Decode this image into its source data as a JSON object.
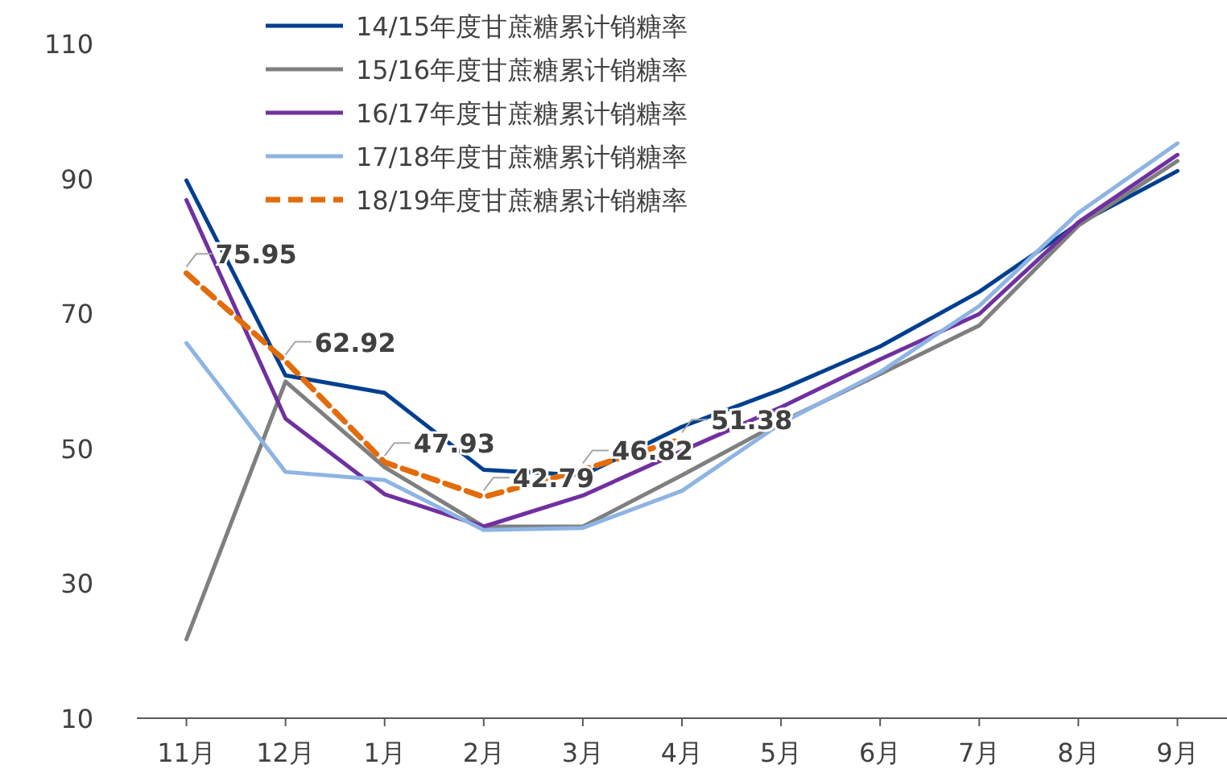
{
  "chart_data": {
    "type": "line",
    "categories": [
      "11月",
      "12月",
      "1月",
      "2月",
      "3月",
      "4月",
      "5月",
      "6月",
      "7月",
      "8月",
      "9月"
    ],
    "ylim": [
      10,
      110
    ],
    "yticks": [
      10,
      30,
      50,
      70,
      90,
      110
    ],
    "grid": false,
    "legend": "top",
    "marker": "none",
    "series": [
      {
        "name": "14/15年度甘蔗糖累计销糖率",
        "color": "#003f8f",
        "line_style": "solid",
        "values": [
          89.7,
          60.8,
          58.2,
          46.8,
          46,
          53.2,
          58.7,
          65.1,
          73.2,
          83.3,
          91.1
        ]
      },
      {
        "name": "15/16年度甘蔗糖累计销糖率",
        "color": "#7f7f7f",
        "line_style": "solid",
        "values": [
          21.7,
          59.9,
          47.2,
          38.4,
          38.4,
          46,
          53.9,
          61,
          68.2,
          83,
          92.6
        ]
      },
      {
        "name": "16/17年度甘蔗糖累计销糖率",
        "color": "#7030a0",
        "line_style": "solid",
        "values": [
          86.8,
          54.4,
          43.2,
          38.4,
          43,
          49.6,
          56.1,
          63.2,
          69.9,
          83.5,
          93.5
        ]
      },
      {
        "name": "17/18年度甘蔗糖累计销糖率",
        "color": "#8eb4e3",
        "line_style": "solid",
        "values": [
          65.6,
          46.5,
          45.3,
          37.9,
          38.2,
          43.7,
          53.7,
          61.3,
          71.1,
          84.9,
          95.2
        ]
      },
      {
        "name": "18/19年度甘蔗糖累计销糖率",
        "color": "#e36c0a",
        "line_style": "dashed",
        "values": [
          75.95,
          62.92,
          47.93,
          42.79,
          46.82,
          51.38,
          null,
          null,
          null,
          null,
          null
        ],
        "value_labels": [
          "75.95",
          "62.92",
          "47.93",
          "42.79",
          "46.82",
          "51.38",
          null,
          null,
          null,
          null,
          null
        ]
      }
    ]
  }
}
